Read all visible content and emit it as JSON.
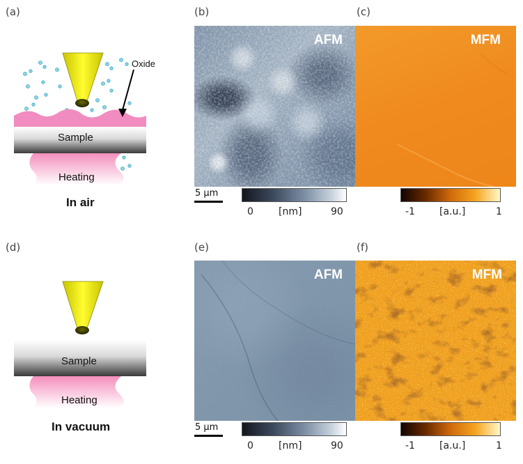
{
  "panels": {
    "a": "(a)",
    "b": "(b)",
    "c": "(c)",
    "d": "(d)",
    "e": "(e)",
    "f": "(f)"
  },
  "air": {
    "caption": "In air",
    "oxide": "Oxide",
    "sample": "Sample",
    "heating": "Heating"
  },
  "vacuum": {
    "caption": "In vacuum",
    "sample": "Sample",
    "heating": "Heating"
  },
  "images": {
    "afm_label": "AFM",
    "mfm_label": "MFM",
    "scale_bar": "5 µm"
  },
  "colorbars": {
    "afm": {
      "min": "0",
      "unit": "[nm]",
      "max": "90"
    },
    "mfm": {
      "min": "-1",
      "unit": "[a.u.]",
      "max": "1"
    }
  },
  "colors": {
    "tip": "#f2ee00",
    "oxide_layer": "#f08cc0",
    "heating": "#f7a8c8",
    "afm_blue": "#6f879d",
    "mfm_orange": "#f08a1e"
  }
}
